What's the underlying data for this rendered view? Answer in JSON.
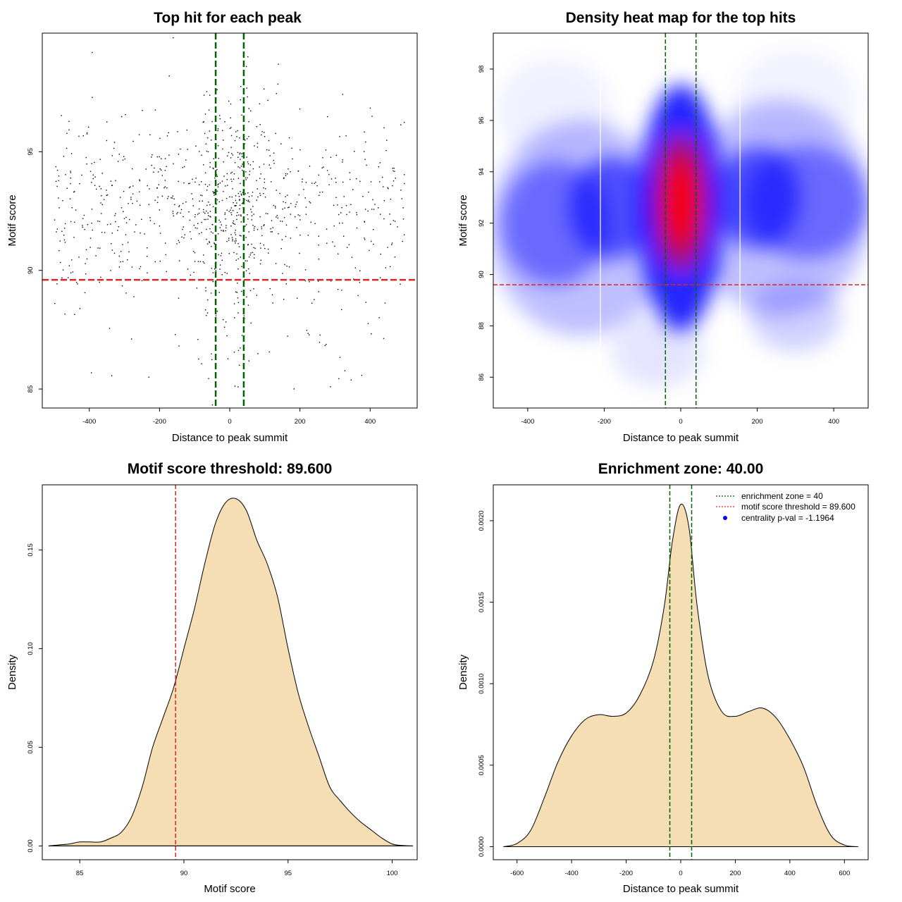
{
  "colors": {
    "enrichment": "#006400",
    "threshold": "#d62728",
    "fill": "#f5deb3",
    "heat_low": "#ffffff",
    "heat_mid": "#0000ff",
    "heat_high": "#ff0000"
  },
  "chart_data": [
    {
      "type": "scatter",
      "title": "Top hit for each peak",
      "xlabel": "Distance to peak summit",
      "ylabel": "Motif score",
      "xlim": [
        -534,
        534
      ],
      "ylim": [
        84.2,
        100
      ],
      "xticks": [
        -400,
        -200,
        0,
        200,
        400
      ],
      "yticks": [
        85,
        90,
        95
      ],
      "xticklabels": [
        "-400",
        "-200",
        "0",
        "200",
        "400"
      ],
      "yticklabels": [
        "85",
        "90",
        "95"
      ],
      "vlines": [
        -40,
        40
      ],
      "hline": 89.6,
      "n_points": 1000,
      "point_distribution": {
        "x_range": [
          -500,
          500
        ],
        "central_cluster_x": 0,
        "central_cluster_sd_x": 60,
        "y_mean": 92.6,
        "y_sd": 2.2
      }
    },
    {
      "type": "heatmap",
      "title": "Density heat map for the top hits",
      "xlabel": "Distance to peak summit",
      "ylabel": "Motif score",
      "xlim": [
        -490,
        490
      ],
      "ylim": [
        84.8,
        99.4
      ],
      "xticks": [
        -400,
        -200,
        0,
        200,
        400
      ],
      "yticks": [
        86,
        88,
        90,
        92,
        94,
        96,
        98
      ],
      "xticklabels": [
        "-400",
        "-200",
        "0",
        "200",
        "400"
      ],
      "yticklabels": [
        "86",
        "88",
        "90",
        "92",
        "94",
        "96",
        "98"
      ],
      "vlines": [
        -40,
        40
      ],
      "hline": 89.6,
      "density_peak": {
        "x": 0,
        "y": 92.8
      }
    },
    {
      "type": "area",
      "title": "Motif score threshold: 89.600",
      "xlabel": "Motif score",
      "ylabel": "Density",
      "xlim": [
        83.2,
        101.2
      ],
      "ylim": [
        -0.007,
        0.183
      ],
      "xticks": [
        85,
        90,
        95,
        100
      ],
      "yticks": [
        0.0,
        0.05,
        0.1,
        0.15
      ],
      "xticklabels": [
        "85",
        "90",
        "95",
        "100"
      ],
      "yticklabels": [
        "0.00",
        "0.05",
        "0.10",
        "0.15"
      ],
      "vline": 89.6,
      "x": [
        83.5,
        84.0,
        84.5,
        85.0,
        85.5,
        86.0,
        86.5,
        87.0,
        87.5,
        88.0,
        88.5,
        89.0,
        89.5,
        90.0,
        90.5,
        91.0,
        91.5,
        92.0,
        92.5,
        93.0,
        93.5,
        94.0,
        94.5,
        95.0,
        95.5,
        96.0,
        96.5,
        97.0,
        97.5,
        98.0,
        98.5,
        99.0,
        99.5,
        100.0,
        100.5,
        101.0
      ],
      "y": [
        0.0,
        0.0005,
        0.001,
        0.002,
        0.002,
        0.002,
        0.004,
        0.007,
        0.015,
        0.03,
        0.05,
        0.065,
        0.08,
        0.1,
        0.12,
        0.143,
        0.163,
        0.174,
        0.176,
        0.17,
        0.155,
        0.143,
        0.126,
        0.1,
        0.077,
        0.06,
        0.045,
        0.03,
        0.023,
        0.017,
        0.012,
        0.008,
        0.004,
        0.001,
        0.0002,
        0.0
      ]
    },
    {
      "type": "area",
      "title": "Enrichment zone: 40.00",
      "xlabel": "Distance to peak summit",
      "ylabel": "Density",
      "xlim": [
        -687,
        687
      ],
      "ylim": [
        -8e-05,
        0.00222
      ],
      "xticks": [
        -600,
        -400,
        -200,
        0,
        200,
        400,
        600
      ],
      "yticks": [
        0.0,
        0.0005,
        0.001,
        0.0015,
        0.002
      ],
      "xticklabels": [
        "-600",
        "-400",
        "-200",
        "0",
        "200",
        "400",
        "600"
      ],
      "yticklabels": [
        "0.0000",
        "0.0005",
        "0.0010",
        "0.0015",
        "0.0020"
      ],
      "vlines": [
        -40,
        40
      ],
      "x": [
        -650,
        -600,
        -550,
        -500,
        -450,
        -400,
        -350,
        -300,
        -250,
        -200,
        -150,
        -100,
        -60,
        -30,
        0,
        30,
        60,
        100,
        150,
        200,
        250,
        300,
        350,
        400,
        450,
        500,
        550,
        600,
        650
      ],
      "y": [
        0.0,
        2e-05,
        0.0001,
        0.0003,
        0.00052,
        0.00068,
        0.00078,
        0.00081,
        0.0008,
        0.00082,
        0.00093,
        0.00114,
        0.00148,
        0.00188,
        0.0021,
        0.00196,
        0.00148,
        0.00105,
        0.00083,
        0.0008,
        0.00083,
        0.00085,
        0.00079,
        0.00066,
        0.00049,
        0.00025,
        7e-05,
        1e-05,
        0.0
      ],
      "legend": {
        "position": "top-right",
        "entries": [
          {
            "label": "enrichment zone = 40"
          },
          {
            "label": "motif score threshold = 89.600"
          },
          {
            "label": "centrality p-val = -1.1964"
          }
        ]
      }
    }
  ]
}
